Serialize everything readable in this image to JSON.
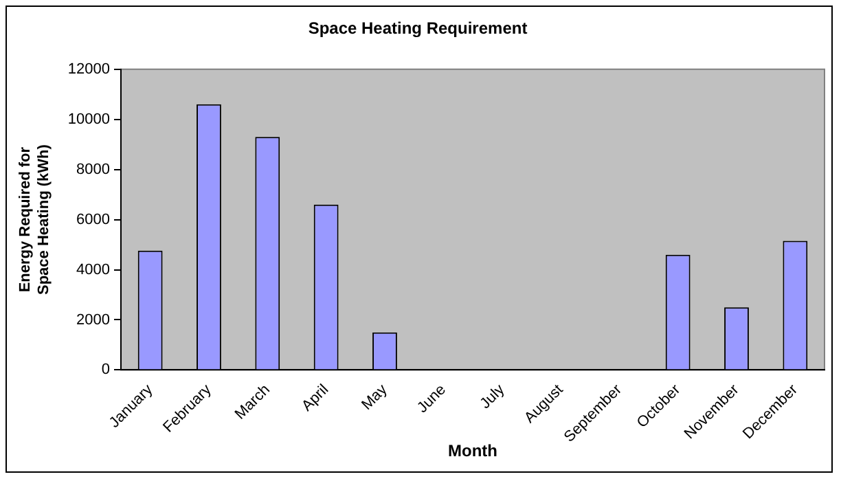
{
  "chart_data": {
    "type": "bar",
    "title": "Space Heating Requirement",
    "xlabel": "Month",
    "ylabel": "Energy Required for\nSpace Heating (kWh)",
    "categories": [
      "January",
      "February",
      "March",
      "April",
      "May",
      "June",
      "July",
      "August",
      "September",
      "October",
      "November",
      "December"
    ],
    "values": [
      4760,
      10600,
      9300,
      6600,
      1500,
      0,
      0,
      0,
      0,
      4600,
      2500,
      5150
    ],
    "color": "#9999ff",
    "ylim": [
      0,
      12000
    ],
    "yticks": [
      0,
      2000,
      4000,
      6000,
      8000,
      10000,
      12000
    ],
    "grid": false,
    "legend": false
  }
}
